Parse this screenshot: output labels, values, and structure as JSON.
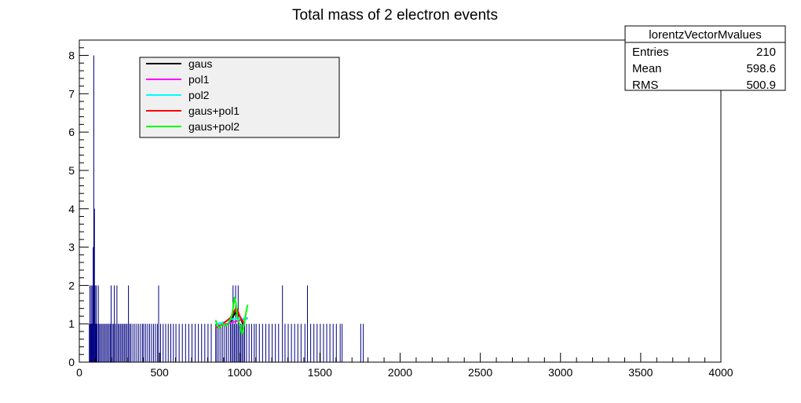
{
  "chart_data": {
    "type": "bar",
    "title": "Total mass of 2 electron events",
    "xlabel": "",
    "ylabel": "",
    "xlim": [
      0,
      4000
    ],
    "ylim": [
      0,
      8.4
    ],
    "x_ticks": [
      0,
      500,
      1000,
      1500,
      2000,
      2500,
      3000,
      3500,
      4000
    ],
    "y_ticks": [
      0,
      1,
      2,
      3,
      4,
      5,
      6,
      7,
      8
    ],
    "bar_color": "#000080",
    "bin_width": 4,
    "bins": [
      {
        "x": 60,
        "y": 1
      },
      {
        "x": 64,
        "y": 2
      },
      {
        "x": 68,
        "y": 1
      },
      {
        "x": 72,
        "y": 2
      },
      {
        "x": 76,
        "y": 1
      },
      {
        "x": 80,
        "y": 2
      },
      {
        "x": 84,
        "y": 3
      },
      {
        "x": 88,
        "y": 8
      },
      {
        "x": 92,
        "y": 4
      },
      {
        "x": 96,
        "y": 2
      },
      {
        "x": 100,
        "y": 1
      },
      {
        "x": 104,
        "y": 2
      },
      {
        "x": 108,
        "y": 1
      },
      {
        "x": 116,
        "y": 2
      },
      {
        "x": 120,
        "y": 1
      },
      {
        "x": 128,
        "y": 1
      },
      {
        "x": 136,
        "y": 1
      },
      {
        "x": 144,
        "y": 1
      },
      {
        "x": 152,
        "y": 1
      },
      {
        "x": 160,
        "y": 1
      },
      {
        "x": 168,
        "y": 1
      },
      {
        "x": 176,
        "y": 1
      },
      {
        "x": 184,
        "y": 1
      },
      {
        "x": 192,
        "y": 1
      },
      {
        "x": 196,
        "y": 2
      },
      {
        "x": 204,
        "y": 1
      },
      {
        "x": 212,
        "y": 1
      },
      {
        "x": 216,
        "y": 2
      },
      {
        "x": 224,
        "y": 1
      },
      {
        "x": 232,
        "y": 2
      },
      {
        "x": 240,
        "y": 1
      },
      {
        "x": 248,
        "y": 1
      },
      {
        "x": 256,
        "y": 1
      },
      {
        "x": 264,
        "y": 1
      },
      {
        "x": 272,
        "y": 1
      },
      {
        "x": 280,
        "y": 1
      },
      {
        "x": 288,
        "y": 1
      },
      {
        "x": 296,
        "y": 1
      },
      {
        "x": 304,
        "y": 2
      },
      {
        "x": 312,
        "y": 1
      },
      {
        "x": 320,
        "y": 1
      },
      {
        "x": 332,
        "y": 1
      },
      {
        "x": 344,
        "y": 1
      },
      {
        "x": 356,
        "y": 1
      },
      {
        "x": 368,
        "y": 1
      },
      {
        "x": 380,
        "y": 1
      },
      {
        "x": 392,
        "y": 1
      },
      {
        "x": 400,
        "y": 1
      },
      {
        "x": 412,
        "y": 1
      },
      {
        "x": 424,
        "y": 1
      },
      {
        "x": 436,
        "y": 1
      },
      {
        "x": 448,
        "y": 1
      },
      {
        "x": 460,
        "y": 1
      },
      {
        "x": 472,
        "y": 1
      },
      {
        "x": 484,
        "y": 1
      },
      {
        "x": 492,
        "y": 2
      },
      {
        "x": 504,
        "y": 1
      },
      {
        "x": 520,
        "y": 1
      },
      {
        "x": 536,
        "y": 1
      },
      {
        "x": 552,
        "y": 1
      },
      {
        "x": 568,
        "y": 1
      },
      {
        "x": 584,
        "y": 1
      },
      {
        "x": 600,
        "y": 1
      },
      {
        "x": 620,
        "y": 1
      },
      {
        "x": 640,
        "y": 1
      },
      {
        "x": 660,
        "y": 1
      },
      {
        "x": 680,
        "y": 1
      },
      {
        "x": 700,
        "y": 1
      },
      {
        "x": 720,
        "y": 1
      },
      {
        "x": 740,
        "y": 1
      },
      {
        "x": 760,
        "y": 1
      },
      {
        "x": 780,
        "y": 1
      },
      {
        "x": 800,
        "y": 1
      },
      {
        "x": 820,
        "y": 1
      },
      {
        "x": 848,
        "y": 1
      },
      {
        "x": 856,
        "y": 1
      },
      {
        "x": 868,
        "y": 1
      },
      {
        "x": 880,
        "y": 1
      },
      {
        "x": 892,
        "y": 1
      },
      {
        "x": 904,
        "y": 1
      },
      {
        "x": 916,
        "y": 1
      },
      {
        "x": 928,
        "y": 1
      },
      {
        "x": 940,
        "y": 1
      },
      {
        "x": 948,
        "y": 1
      },
      {
        "x": 956,
        "y": 2
      },
      {
        "x": 964,
        "y": 1
      },
      {
        "x": 972,
        "y": 2
      },
      {
        "x": 980,
        "y": 1
      },
      {
        "x": 988,
        "y": 2
      },
      {
        "x": 996,
        "y": 1
      },
      {
        "x": 1004,
        "y": 1
      },
      {
        "x": 1012,
        "y": 1
      },
      {
        "x": 1020,
        "y": 1
      },
      {
        "x": 1028,
        "y": 1
      },
      {
        "x": 1040,
        "y": 1
      },
      {
        "x": 1056,
        "y": 1
      },
      {
        "x": 1072,
        "y": 1
      },
      {
        "x": 1088,
        "y": 1
      },
      {
        "x": 1100,
        "y": 1
      },
      {
        "x": 1120,
        "y": 1
      },
      {
        "x": 1140,
        "y": 1
      },
      {
        "x": 1160,
        "y": 1
      },
      {
        "x": 1180,
        "y": 1
      },
      {
        "x": 1200,
        "y": 1
      },
      {
        "x": 1220,
        "y": 1
      },
      {
        "x": 1240,
        "y": 1
      },
      {
        "x": 1264,
        "y": 2
      },
      {
        "x": 1280,
        "y": 1
      },
      {
        "x": 1300,
        "y": 1
      },
      {
        "x": 1320,
        "y": 1
      },
      {
        "x": 1340,
        "y": 1
      },
      {
        "x": 1360,
        "y": 1
      },
      {
        "x": 1380,
        "y": 1
      },
      {
        "x": 1404,
        "y": 1
      },
      {
        "x": 1420,
        "y": 2
      },
      {
        "x": 1440,
        "y": 1
      },
      {
        "x": 1460,
        "y": 1
      },
      {
        "x": 1480,
        "y": 1
      },
      {
        "x": 1500,
        "y": 1
      },
      {
        "x": 1520,
        "y": 1
      },
      {
        "x": 1540,
        "y": 1
      },
      {
        "x": 1560,
        "y": 1
      },
      {
        "x": 1580,
        "y": 1
      },
      {
        "x": 1600,
        "y": 1
      },
      {
        "x": 1624,
        "y": 1
      },
      {
        "x": 1636,
        "y": 1
      },
      {
        "x": 1752,
        "y": 1
      },
      {
        "x": 1768,
        "y": 1
      }
    ],
    "fits": [
      {
        "name": "gaus",
        "color": "#000000",
        "points": [
          [
            940,
            1.0
          ],
          [
            950,
            1.1
          ],
          [
            960,
            1.2
          ],
          [
            970,
            1.28
          ],
          [
            980,
            1.3
          ],
          [
            990,
            1.28
          ],
          [
            1000,
            1.2
          ],
          [
            1010,
            1.1
          ],
          [
            1020,
            1.0
          ]
        ]
      },
      {
        "name": "pol1",
        "color": "#ff00ff",
        "points": [
          [
            850,
            0.92
          ],
          [
            1050,
            1.15
          ]
        ]
      },
      {
        "name": "pol2",
        "color": "#00ffff",
        "points": [
          [
            850,
            1.0
          ],
          [
            900,
            1.04
          ],
          [
            950,
            1.12
          ],
          [
            1000,
            1.15
          ],
          [
            1050,
            1.12
          ]
        ]
      },
      {
        "name": "gaus+pol1",
        "color": "#ff0000",
        "points": [
          [
            855,
            0.9
          ],
          [
            880,
            0.95
          ],
          [
            910,
            1.05
          ],
          [
            940,
            1.15
          ],
          [
            960,
            1.28
          ],
          [
            975,
            1.4
          ],
          [
            985,
            1.38
          ],
          [
            995,
            1.25
          ],
          [
            1010,
            1.12
          ],
          [
            1030,
            1.0
          ]
        ]
      },
      {
        "name": "gaus+pol2",
        "color": "#00ff00",
        "points": [
          [
            850,
            1.1
          ],
          [
            860,
            0.95
          ],
          [
            875,
            0.9
          ],
          [
            895,
            1.0
          ],
          [
            915,
            0.95
          ],
          [
            935,
            1.05
          ],
          [
            950,
            1.2
          ],
          [
            960,
            1.45
          ],
          [
            968,
            1.7
          ],
          [
            976,
            1.55
          ],
          [
            984,
            1.2
          ],
          [
            994,
            1.05
          ],
          [
            1004,
            0.95
          ],
          [
            1014,
            0.72
          ],
          [
            1022,
            0.85
          ],
          [
            1032,
            1.1
          ],
          [
            1042,
            1.35
          ],
          [
            1050,
            1.5
          ]
        ]
      }
    ],
    "legend": {
      "placement": "top-left",
      "entries": [
        "gaus",
        "pol1",
        "pol2",
        "gaus+pol1",
        "gaus+pol2"
      ]
    },
    "stats_box": {
      "title": "lorentzVectorMvalues",
      "rows": [
        {
          "label": "Entries",
          "value": "210"
        },
        {
          "label": "Mean",
          "value": "598.6"
        },
        {
          "label": "RMS",
          "value": "500.9"
        }
      ]
    }
  }
}
